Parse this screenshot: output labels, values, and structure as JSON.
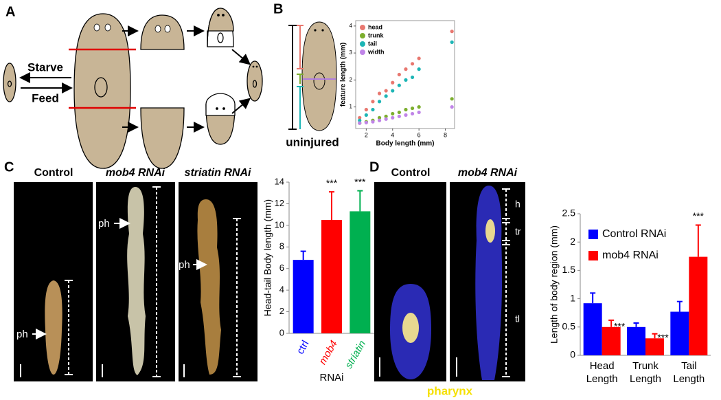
{
  "panels": {
    "A": {
      "letter": "A",
      "labels": [
        "Starve",
        "Feed"
      ]
    },
    "B": {
      "letter": "B",
      "caption": "uninjured"
    },
    "C": {
      "letter": "C",
      "photos": [
        {
          "title": "Control",
          "marker": "ph"
        },
        {
          "title": "mob4 RNAi",
          "marker": "ph"
        },
        {
          "title": "striatin RNAi",
          "marker": "ph"
        }
      ]
    },
    "D": {
      "letter": "D",
      "photos": [
        {
          "title": "Control"
        },
        {
          "title": "mob4 RNAi",
          "regions": [
            "h",
            "tr",
            "tl"
          ]
        }
      ],
      "stain": "pharynx"
    }
  },
  "chart_data": [
    {
      "type": "scatter",
      "x_label": "Body length (mm)",
      "y_label": "feature length (mm)",
      "xlim": [
        1.2,
        8.7
      ],
      "ylim": [
        0.2,
        4.2
      ],
      "xticks": [
        2,
        4,
        6,
        8
      ],
      "yticks": [
        1,
        2,
        3,
        4
      ],
      "legend": "top-left",
      "series": [
        {
          "name": "head",
          "color": "#e8776f",
          "x": [
            1.5,
            2,
            2.5,
            3,
            3.5,
            4,
            4.5,
            5,
            5.5,
            6,
            8.5
          ],
          "values": [
            0.6,
            0.9,
            1.2,
            1.5,
            1.6,
            1.9,
            2.2,
            2.4,
            2.6,
            2.8,
            3.8
          ]
        },
        {
          "name": "trunk",
          "color": "#7cae2e",
          "x": [
            1.5,
            2,
            2.5,
            3,
            3.5,
            4,
            4.5,
            5,
            5.5,
            6,
            8.5
          ],
          "values": [
            0.4,
            0.45,
            0.5,
            0.6,
            0.65,
            0.75,
            0.8,
            0.9,
            0.95,
            1.0,
            1.3
          ]
        },
        {
          "name": "tail",
          "color": "#1db5b5",
          "x": [
            1.5,
            2,
            2.5,
            3,
            3.5,
            4,
            4.5,
            5,
            5.5,
            6,
            8.5
          ],
          "values": [
            0.5,
            0.7,
            0.9,
            1.2,
            1.4,
            1.6,
            1.8,
            2.0,
            2.1,
            2.4,
            3.4
          ]
        },
        {
          "name": "width",
          "color": "#c084e8",
          "x": [
            1.5,
            2,
            2.5,
            3,
            3.5,
            4,
            4.5,
            5,
            5.5,
            6,
            8.5
          ],
          "values": [
            0.4,
            0.42,
            0.45,
            0.5,
            0.55,
            0.6,
            0.65,
            0.7,
            0.75,
            0.8,
            1.0
          ]
        }
      ]
    },
    {
      "type": "bar",
      "y_label": "Head-tail Body length (mm)",
      "x_label": "RNAi",
      "categories": [
        "ctrl",
        "mob4",
        "striatin"
      ],
      "colors": [
        "#0000ff",
        "#ff0000",
        "#00b050"
      ],
      "values": [
        6.8,
        10.5,
        11.3
      ],
      "errors": [
        0.8,
        2.6,
        1.9
      ],
      "annotations": [
        null,
        "***",
        "***"
      ],
      "ylim": [
        0,
        14
      ],
      "yticks": [
        0,
        2,
        4,
        6,
        8,
        10,
        12,
        14
      ]
    },
    {
      "type": "grouped_bar",
      "y_label": "Length of body region (mm)",
      "categories": [
        "Head Length",
        "Trunk Length",
        "Tail Length"
      ],
      "legend": "top-left",
      "series": [
        {
          "name": "Control RNAi",
          "color": "#0000ff",
          "values": [
            0.92,
            0.5,
            0.77
          ],
          "errors": [
            0.18,
            0.07,
            0.18
          ]
        },
        {
          "name": "mob4 RNAi",
          "color": "#ff0000",
          "values": [
            0.5,
            0.3,
            1.74
          ],
          "errors": [
            0.12,
            0.08,
            0.56
          ],
          "annotations": [
            "***",
            "***",
            "***"
          ]
        }
      ],
      "ylim": [
        0,
        2.5
      ],
      "yticks": [
        0,
        0.5,
        1,
        1.5,
        2,
        2.5
      ]
    }
  ]
}
